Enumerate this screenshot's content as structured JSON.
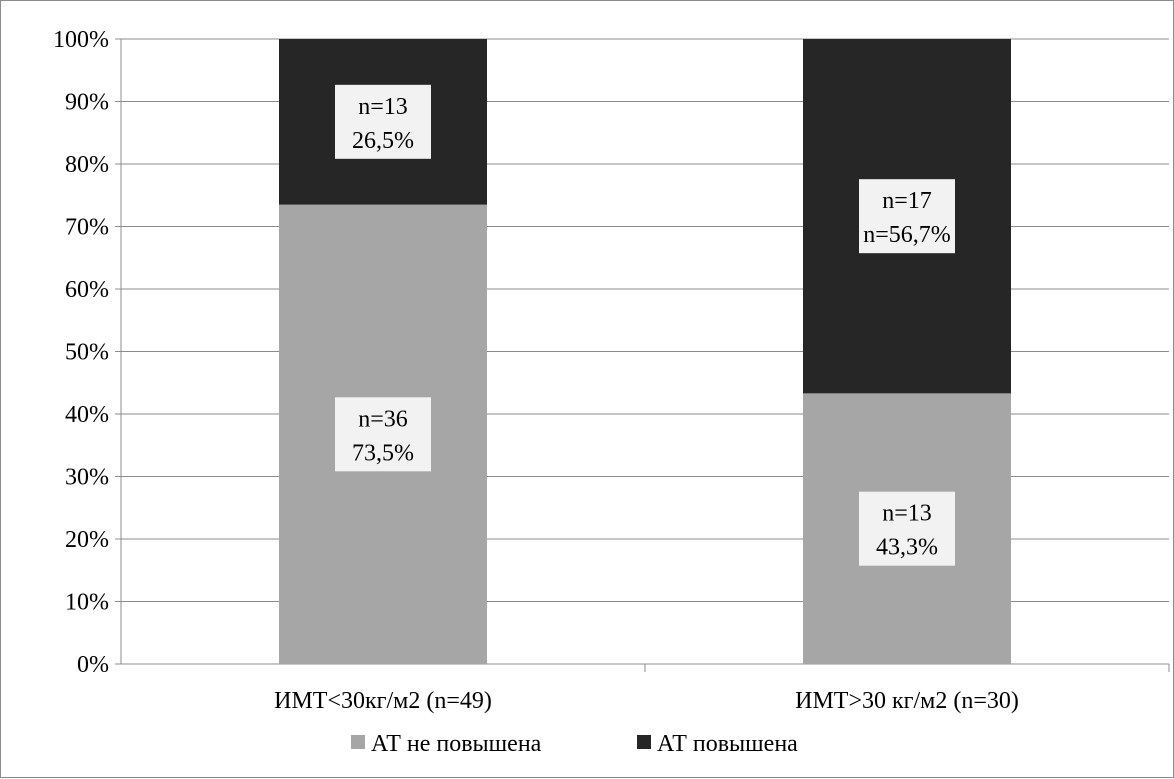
{
  "chart_data": {
    "type": "bar",
    "stacked": true,
    "percent_stacked": true,
    "categories": [
      "ИМТ<30кг/м2 (n=49)",
      "ИМТ>30 кг/м2 (n=30)"
    ],
    "series": [
      {
        "name": "АТ не повышена",
        "color": "#a6a6a6",
        "values": [
          73.5,
          43.3
        ],
        "labels": [
          [
            "n=36",
            "73,5%"
          ],
          [
            "n=13",
            "43,3%"
          ]
        ]
      },
      {
        "name": "АТ повышена",
        "color": "#262626",
        "values": [
          26.5,
          56.7
        ],
        "labels": [
          [
            "n=13",
            "26,5%"
          ],
          [
            "n=17",
            "n=56,7%"
          ]
        ]
      }
    ],
    "y_ticks": [
      "0%",
      "10%",
      "20%",
      "30%",
      "40%",
      "50%",
      "60%",
      "70%",
      "80%",
      "90%",
      "100%"
    ],
    "ylim": [
      0,
      100
    ],
    "grid": true,
    "legend": "bottom",
    "title": "",
    "xlabel": "",
    "ylabel": ""
  }
}
